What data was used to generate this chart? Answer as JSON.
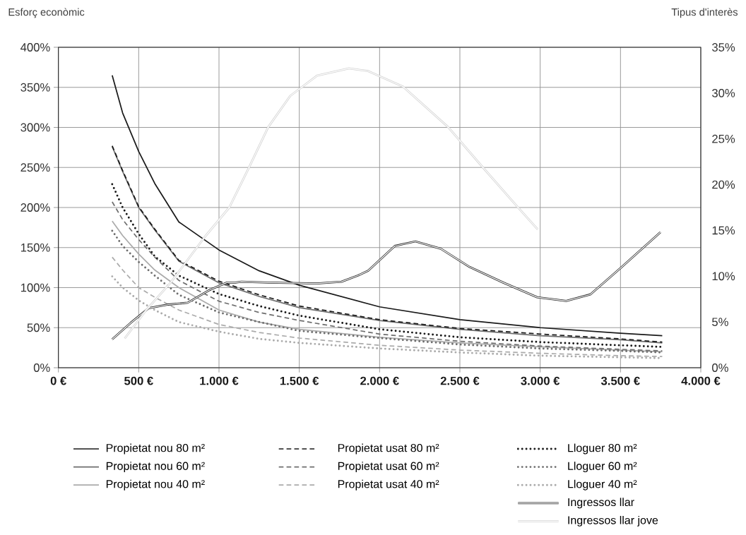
{
  "chart_data": {
    "type": "line",
    "ylabel": "Esforç econòmic",
    "y2label": "Tipus d'interès",
    "x": [
      335,
      400,
      500,
      600,
      750,
      1000,
      1250,
      1500,
      2000,
      2500,
      3000,
      3500,
      3760
    ],
    "xlim": [
      0,
      4000
    ],
    "xticks": [
      {
        "value": 0,
        "label": "0 €"
      },
      {
        "value": 500,
        "label": "500 €"
      },
      {
        "value": 1000,
        "label": "1.000 €"
      },
      {
        "value": 1500,
        "label": "1.500 €"
      },
      {
        "value": 2000,
        "label": "2.000 €"
      },
      {
        "value": 2500,
        "label": "2.500 €"
      },
      {
        "value": 3000,
        "label": "3.000 €"
      },
      {
        "value": 3500,
        "label": "3.500 €"
      },
      {
        "value": 4000,
        "label": "4.000 €"
      }
    ],
    "ylim": [
      0,
      400
    ],
    "yticks": [
      {
        "value": 0,
        "label": "0%"
      },
      {
        "value": 50,
        "label": "50%"
      },
      {
        "value": 100,
        "label": "100%"
      },
      {
        "value": 150,
        "label": "150%"
      },
      {
        "value": 200,
        "label": "200%"
      },
      {
        "value": 250,
        "label": "250%"
      },
      {
        "value": 300,
        "label": "300%"
      },
      {
        "value": 350,
        "label": "350%"
      },
      {
        "value": 400,
        "label": "400%"
      }
    ],
    "y2lim": [
      0,
      35
    ],
    "y2ticks": [
      {
        "value": 0,
        "label": "0%"
      },
      {
        "value": 5,
        "label": "5%"
      },
      {
        "value": 10,
        "label": "10%"
      },
      {
        "value": 15,
        "label": "15%"
      },
      {
        "value": 20,
        "label": "20%"
      },
      {
        "value": 25,
        "label": "25%"
      },
      {
        "value": 30,
        "label": "30%"
      },
      {
        "value": 35,
        "label": "35%"
      }
    ],
    "grid": true,
    "legend": "bottom",
    "marker": "none",
    "series": [
      {
        "name": "Propietat nou 80 m²",
        "color": "#1a1a1a",
        "line_style": "solid",
        "values": [
          365,
          318,
          270,
          230,
          182,
          147,
          121,
          103,
          76,
          60,
          50,
          43,
          40
        ]
      },
      {
        "name": "Propietat nou 60 m²",
        "color": "#6e6e6e",
        "line_style": "solid",
        "values": [
          276,
          245,
          200,
          172,
          133,
          106,
          89,
          75,
          59,
          48,
          40,
          35,
          31
        ]
      },
      {
        "name": "Propietat nou 40 m²",
        "color": "#ababab",
        "line_style": "solid",
        "values": [
          183,
          165,
          142,
          122,
          100,
          72,
          57,
          48,
          38,
          31,
          26,
          22,
          20
        ]
      },
      {
        "name": "Propietat usat 80 m²",
        "color": "#1a1a1a",
        "line_style": "dashed",
        "values": [
          277,
          246,
          201,
          173,
          134,
          108,
          91,
          77,
          60,
          49,
          42,
          36,
          32
        ]
      },
      {
        "name": "Propietat usat 60 m²",
        "color": "#6e6e6e",
        "line_style": "dashed",
        "values": [
          207,
          185,
          160,
          138,
          109,
          83,
          69,
          59,
          42,
          33,
          27,
          23,
          21
        ]
      },
      {
        "name": "Propietat usat 40 m²",
        "color": "#ababab",
        "line_style": "dashed",
        "values": [
          138,
          122,
          100,
          88,
          72,
          54,
          44,
          37,
          28,
          22,
          18,
          15,
          14
        ]
      },
      {
        "name": "Lloguer 80 m²",
        "color": "#1a1a1a",
        "line_style": "dotted",
        "values": [
          229,
          200,
          167,
          139,
          115,
          92,
          77,
          65,
          48,
          38,
          32,
          28,
          26
        ]
      },
      {
        "name": "Lloguer 60 m²",
        "color": "#6e6e6e",
        "line_style": "dotted",
        "values": [
          171,
          152,
          132,
          115,
          91,
          69,
          57,
          46,
          37,
          29,
          24,
          21,
          19
        ]
      },
      {
        "name": "Lloguer 40 m²",
        "color": "#ababab",
        "line_style": "dotted",
        "values": [
          114,
          100,
          84,
          72,
          57,
          45,
          36,
          31,
          24,
          19,
          15,
          13,
          12
        ]
      },
      {
        "name": "Ingressos llar",
        "color": "#222222",
        "line_style": "solid",
        "axis": "y2",
        "x": [
          335,
          450,
          562,
          684,
          805,
          942,
          1049,
          1102,
          1140,
          1307,
          1611,
          1763,
          1869,
          1929,
          2095,
          2223,
          2381,
          2561,
          2770,
          2981,
          3162,
          3312,
          3508,
          3749
        ],
        "values": [
          3.1,
          4.9,
          6.5,
          6.9,
          7.1,
          8.5,
          9.3,
          9.3,
          9.4,
          9.3,
          9.2,
          9.4,
          10.1,
          10.6,
          13.3,
          13.8,
          13.0,
          11.0,
          9.3,
          7.7,
          7.3,
          8.0,
          11.0,
          14.8
        ]
      },
      {
        "name": "Ingressos llar jove",
        "color": "#d2d2d2",
        "line_style": "solid",
        "axis": "y2",
        "x": [
          413,
          547,
          699,
          912,
          1064,
          1185,
          1307,
          1444,
          1611,
          1809,
          1929,
          2146,
          2426,
          2647,
          2857,
          2985
        ],
        "values": [
          3.2,
          6.3,
          9.3,
          14.3,
          17.5,
          21.8,
          26.3,
          29.7,
          31.9,
          32.7,
          32.4,
          30.7,
          26.3,
          21.8,
          17.6,
          15.1
        ]
      }
    ]
  }
}
